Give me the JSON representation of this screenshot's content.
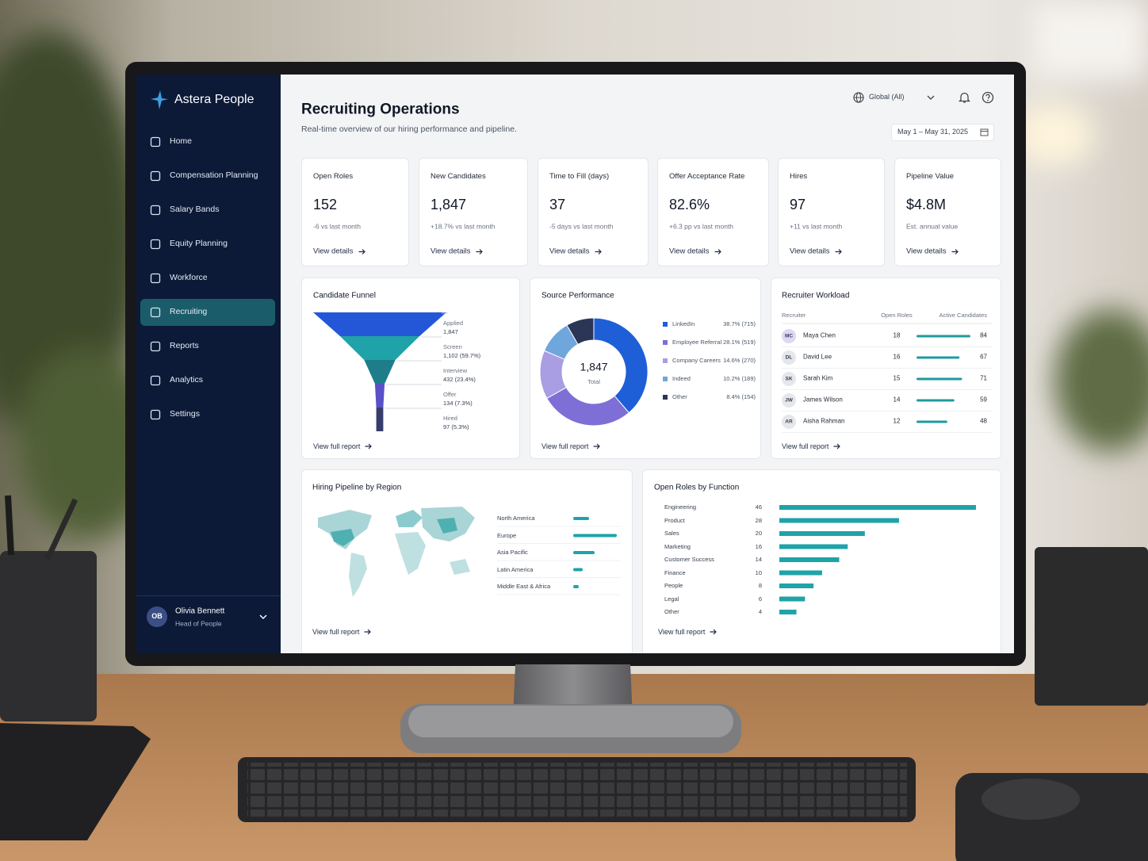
{
  "app": {
    "name": "Astera People"
  },
  "nav": [
    {
      "label": "Home"
    },
    {
      "label": "Compensation Planning"
    },
    {
      "label": "Salary Bands"
    },
    {
      "label": "Equity Planning"
    },
    {
      "label": "Workforce"
    },
    {
      "label": "Recruiting",
      "active": true
    },
    {
      "label": "Reports"
    },
    {
      "label": "Analytics"
    },
    {
      "label": "Settings"
    }
  ],
  "user": {
    "initials": "OB",
    "name": "Olivia Bennett",
    "role": "Head of People"
  },
  "header": {
    "title": "Recruiting Operations",
    "subtitle": "Real-time overview of our hiring performance and pipeline.",
    "region": "Global (All)",
    "date_range": "May 1 – May 31, 2025"
  },
  "kpis": [
    {
      "label": "Open Roles",
      "value": "152",
      "note": "-6 vs last month",
      "link": "View details"
    },
    {
      "label": "New Candidates",
      "value": "1,847",
      "note": "+18.7% vs last month",
      "link": "View details"
    },
    {
      "label": "Time to Fill (days)",
      "value": "37",
      "note": "-5 days vs last month",
      "link": "View details"
    },
    {
      "label": "Offer Acceptance Rate",
      "value": "82.6%",
      "note": "+6.3 pp vs last month",
      "link": "View details"
    },
    {
      "label": "Hires",
      "value": "97",
      "note": "+11 vs last month",
      "link": "View details"
    },
    {
      "label": "Pipeline Value",
      "value": "$4.8M",
      "note": "Est. annual value",
      "link": "View details"
    }
  ],
  "funnel": {
    "title": "Candidate Funnel",
    "link": "View full report",
    "stages": [
      {
        "name": "Applied",
        "value": 1847,
        "value_label": "1,847",
        "color": "#2457d8"
      },
      {
        "name": "Screen",
        "value": 1102,
        "value_label": "1,102 (59.7%)",
        "color": "#1fa2a8"
      },
      {
        "name": "Interview",
        "value": 432,
        "value_label": "432 (23.4%)",
        "color": "#1e7d8b"
      },
      {
        "name": "Offer",
        "value": 134,
        "value_label": "134 (7.3%)",
        "color": "#5a50c8"
      },
      {
        "name": "Hired",
        "value": 97,
        "value_label": "97 (5.3%)",
        "color": "#363d6b"
      }
    ]
  },
  "sources": {
    "title": "Source Performance",
    "total": "1,847",
    "total_label": "Total",
    "link": "View full report",
    "items": [
      {
        "name": "LinkedIn",
        "value": 715,
        "value_label": "38.7% (715)",
        "color": "#1e5fd8"
      },
      {
        "name": "Employee Referral",
        "value": 519,
        "value_label": "28.1% (519)",
        "color": "#7d6fd6"
      },
      {
        "name": "Company Careers",
        "value": 270,
        "value_label": "14.6% (270)",
        "color": "#a99de3"
      },
      {
        "name": "Indeed",
        "value": 189,
        "value_label": "10.2% (189)",
        "color": "#6fa6dc"
      },
      {
        "name": "Other",
        "value": 154,
        "value_label": "8.4% (154)",
        "color": "#2b3556"
      }
    ]
  },
  "workload": {
    "title": "Recruiter Workload",
    "columns": [
      "Recruiter",
      "Open Roles",
      "Active Candidates"
    ],
    "bar_color": "#1f9aa0",
    "link": "View full report",
    "rows": [
      {
        "initials": "MC",
        "name": "Maya Chen",
        "open_roles": 18,
        "active_candidates": 84
      },
      {
        "initials": "DL",
        "name": "David Lee",
        "open_roles": 16,
        "active_candidates": 67
      },
      {
        "initials": "SK",
        "name": "Sarah Kim",
        "open_roles": 15,
        "active_candidates": 71
      },
      {
        "initials": "JW",
        "name": "James Wilson",
        "open_roles": 14,
        "active_candidates": 59
      },
      {
        "initials": "AR",
        "name": "Aisha Rahman",
        "open_roles": 12,
        "active_candidates": 48
      }
    ]
  },
  "regions": {
    "title": "Hiring Pipeline by Region",
    "color": "#1fa3a8",
    "link": "View full report",
    "items": [
      {
        "name": "North America",
        "value": 20
      },
      {
        "name": "Europe",
        "value": 55
      },
      {
        "name": "Asia Pacific",
        "value": 27
      },
      {
        "name": "Latin America",
        "value": 12
      },
      {
        "name": "Middle East & Africa",
        "value": 7
      }
    ]
  },
  "functions": {
    "title": "Open Roles by Function",
    "color": "#1fa3a8",
    "link": "View full report",
    "items": [
      {
        "name": "Engineering",
        "value": 46
      },
      {
        "name": "Product",
        "value": 28
      },
      {
        "name": "Sales",
        "value": 20
      },
      {
        "name": "Marketing",
        "value": 16
      },
      {
        "name": "Customer Success",
        "value": 14
      },
      {
        "name": "Finance",
        "value": 10
      },
      {
        "name": "People",
        "value": 8
      },
      {
        "name": "Legal",
        "value": 6
      },
      {
        "name": "Other",
        "value": 4
      }
    ]
  }
}
